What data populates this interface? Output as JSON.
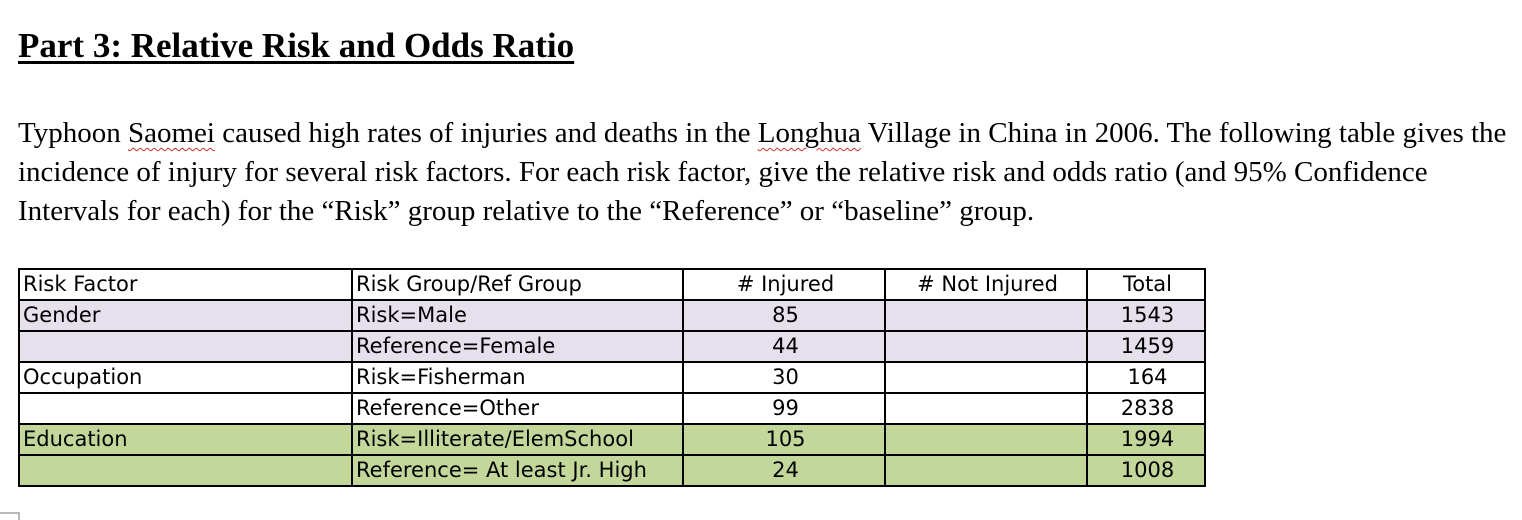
{
  "document": {
    "heading": "Part 3: Relative Risk and Odds Ratio",
    "paragraph": {
      "p1": "Typhoon ",
      "w1": "Saomei",
      "p2": " caused high rates of injuries and deaths in the ",
      "w2": "Longhua",
      "p3": " Village in China in 2006. The following table gives the incidence of injury for several risk factors. For each risk factor, give the relative risk and odds ratio (and 95% Confidence Intervals for each) for the “Risk” group relative to the “Reference” or “baseline” group."
    }
  },
  "table": {
    "headers": [
      "Risk Factor",
      "Risk Group/Ref Group",
      "# Injured",
      "# Not Injured",
      "Total"
    ],
    "rows": [
      {
        "factor": "Gender",
        "group": "Risk=Male",
        "injured": "85",
        "not_injured": "",
        "total": "1543"
      },
      {
        "factor": "",
        "group": "Reference=Female",
        "injured": "44",
        "not_injured": "",
        "total": "1459"
      },
      {
        "factor": "Occupation",
        "group": "Risk=Fisherman",
        "injured": "30",
        "not_injured": "",
        "total": "164"
      },
      {
        "factor": "",
        "group": "Reference=Other",
        "injured": "99",
        "not_injured": "",
        "total": "2838"
      },
      {
        "factor": "Education",
        "group": "Risk=Illiterate/ElemSchool",
        "injured": "105",
        "not_injured": "",
        "total": "1994"
      },
      {
        "factor": "",
        "group": "Reference= At least Jr. High",
        "injured": "24",
        "not_injured": "",
        "total": "1008"
      }
    ]
  },
  "colors": {
    "gender_rows": "#e5e0ec",
    "education_rows": "#c4d79b",
    "spellcheck_underline": "#d03030"
  }
}
